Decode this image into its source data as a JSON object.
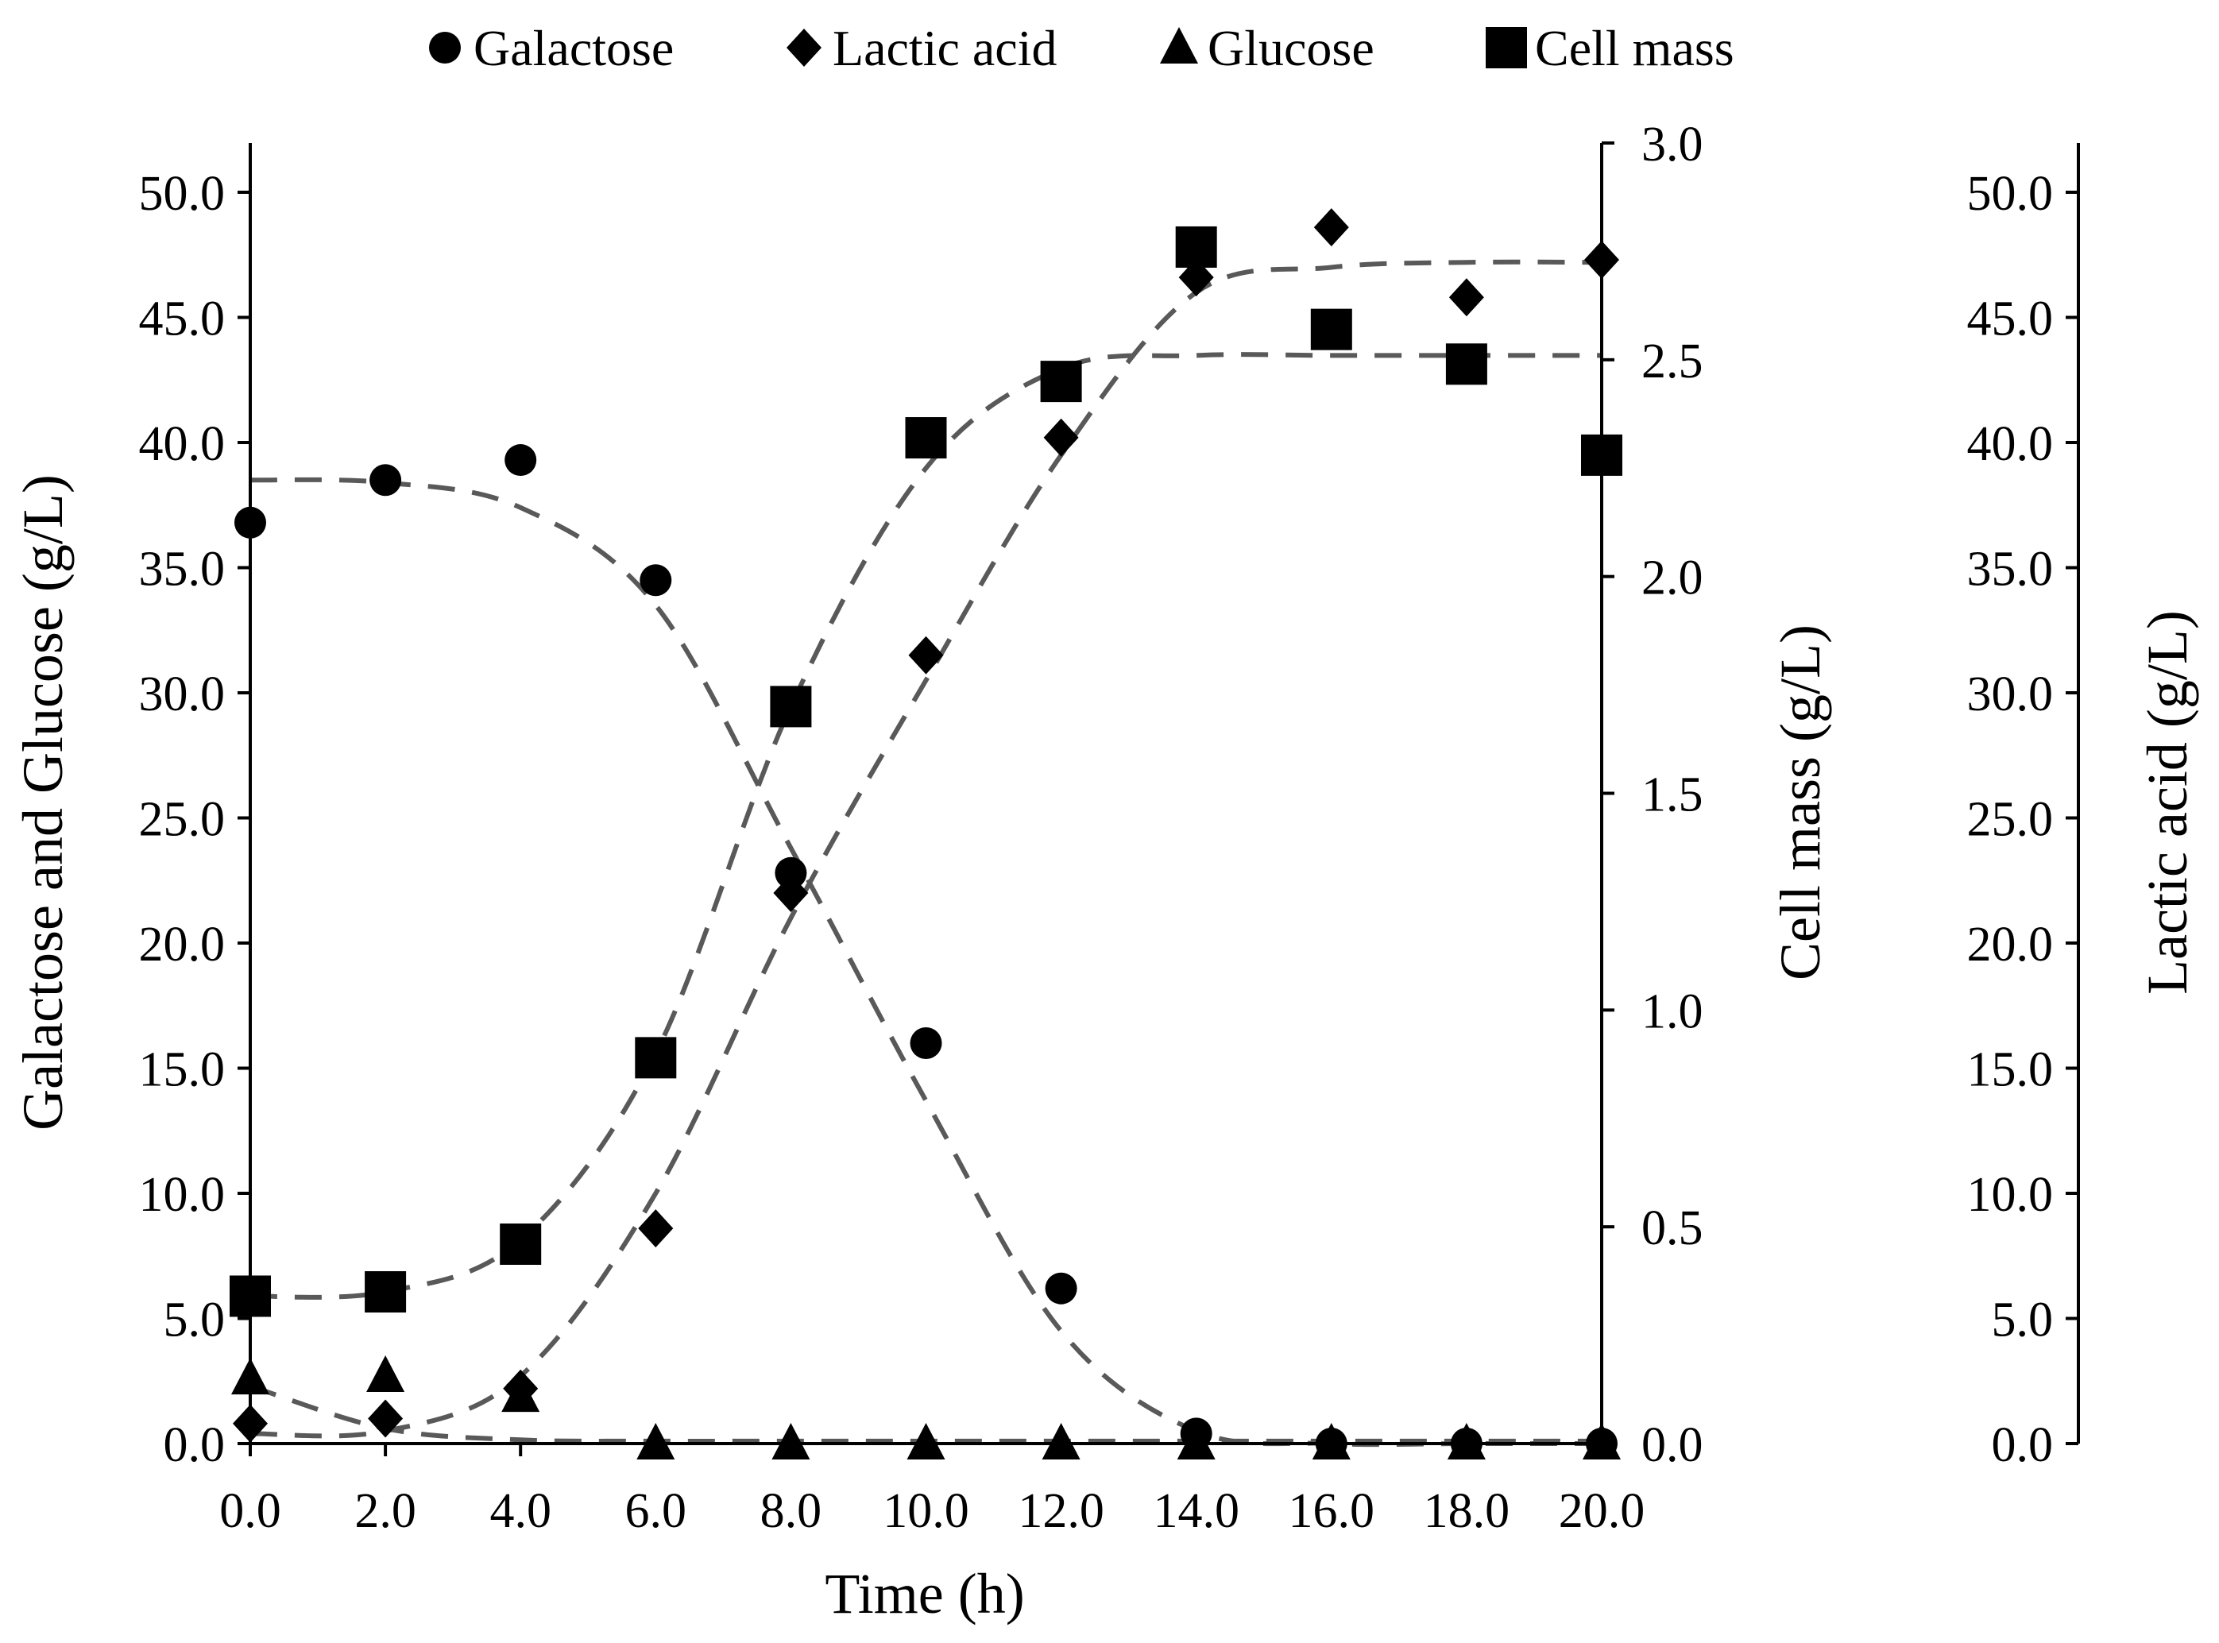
{
  "chart_data": {
    "type": "scatter",
    "title": "",
    "xlabel": "Time (h)",
    "ylabel_left": "Galactose and Glucose (g/L)",
    "ylabel_right_inner": "Cell mass (g/L)",
    "ylabel_right_outer": "Lactic acid (g/L)",
    "xlim": [
      0,
      20
    ],
    "ylim_left": [
      0,
      50
    ],
    "ylim_right_inner": [
      0,
      3
    ],
    "ylim_right_outer": [
      0,
      50
    ],
    "xticks": [
      "0.0",
      "2.0",
      "4.0",
      "6.0",
      "8.0",
      "10.0",
      "12.0",
      "14.0",
      "16.0",
      "18.0",
      "20.0"
    ],
    "yticks_left": [
      "0.0",
      "5.0",
      "10.0",
      "15.0",
      "20.0",
      "25.0",
      "30.0",
      "35.0",
      "40.0",
      "45.0",
      "50.0"
    ],
    "yticks_right_inner": [
      "0.0",
      "0.5",
      "1.0",
      "1.5",
      "2.0",
      "2.5",
      "3.0"
    ],
    "yticks_right_outer": [
      "0.0",
      "5.0",
      "10.0",
      "15.0",
      "20.0",
      "25.0",
      "30.0",
      "35.0",
      "40.0",
      "45.0",
      "50.0"
    ],
    "legend_position": "top-center",
    "series": [
      {
        "name": "Galactose",
        "marker": "circle",
        "axis": "left",
        "x": [
          0,
          2,
          4,
          6,
          8,
          10,
          12,
          14,
          16,
          18,
          20
        ],
        "values": [
          36.8,
          38.5,
          39.3,
          34.5,
          22.8,
          16.0,
          6.2,
          0.4,
          0.0,
          0.0,
          0.0
        ],
        "fit": [
          38.5,
          38.4,
          37.4,
          33.5,
          23.8,
          13.7,
          4.5,
          0.5,
          0.0,
          0.0,
          0.0
        ]
      },
      {
        "name": "Lactic acid",
        "marker": "diamond",
        "axis": "right_outer",
        "x": [
          0,
          2,
          4,
          6,
          8,
          10,
          12,
          14,
          16,
          18,
          20
        ],
        "values": [
          0.8,
          1.0,
          2.2,
          8.6,
          22.0,
          31.5,
          40.2,
          46.6,
          48.6,
          45.8,
          47.3
        ],
        "fit": [
          0.4,
          0.5,
          2.7,
          10.0,
          21.0,
          30.5,
          39.5,
          46.0,
          47.0,
          47.2,
          47.2
        ]
      },
      {
        "name": "Glucose",
        "marker": "triangle",
        "axis": "left",
        "x": [
          0,
          2,
          4,
          6,
          8,
          10,
          12,
          14,
          16,
          18,
          20
        ],
        "values": [
          2.6,
          2.7,
          1.9,
          0.0,
          0.0,
          0.0,
          0.0,
          0.0,
          0.0,
          0.0,
          0.0
        ],
        "fit": [
          2.3,
          0.6,
          0.15,
          0.1,
          0.1,
          0.1,
          0.1,
          0.1,
          0.1,
          0.1,
          0.1
        ]
      },
      {
        "name": "Cell mass",
        "marker": "square",
        "axis": "right_inner",
        "x": [
          0,
          2,
          4,
          6,
          8,
          10,
          12,
          14,
          16,
          18,
          20
        ],
        "values": [
          0.34,
          0.35,
          0.46,
          0.89,
          1.7,
          2.32,
          2.45,
          2.76,
          2.57,
          2.49,
          2.28
        ],
        "fit": [
          0.34,
          0.35,
          0.47,
          0.9,
          1.7,
          2.25,
          2.48,
          2.51,
          2.51,
          2.51,
          2.51
        ]
      }
    ]
  }
}
